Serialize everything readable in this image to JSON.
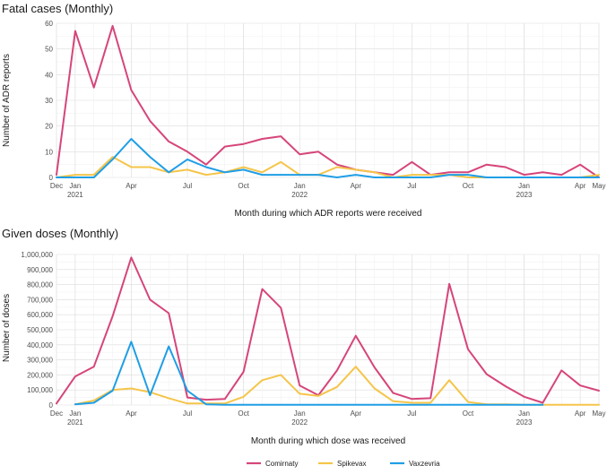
{
  "figure": {
    "colors": {
      "Comirnaty": "#d6457a",
      "Spikevax": "#f5c54a",
      "Vaxzevria": "#1f9ee6"
    }
  },
  "chart_data": [
    {
      "type": "line",
      "title": "Fatal cases (Monthly)",
      "xlabel": "Month during which ADR reports were received",
      "ylabel": "Number of ADR reports",
      "ylim": [
        0,
        60
      ],
      "yticks": [
        "0",
        "10",
        "20",
        "30",
        "40",
        "50",
        "60"
      ],
      "x": [
        "2020-12",
        "2021-01",
        "2021-02",
        "2021-03",
        "2021-04",
        "2021-05",
        "2021-06",
        "2021-07",
        "2021-08",
        "2021-09",
        "2021-10",
        "2021-11",
        "2021-12",
        "2022-01",
        "2022-02",
        "2022-03",
        "2022-04",
        "2022-05",
        "2022-06",
        "2022-07",
        "2022-08",
        "2022-09",
        "2022-10",
        "2022-11",
        "2022-12",
        "2023-01",
        "2023-02",
        "2023-03",
        "2023-04",
        "2023-05"
      ],
      "xticks": [
        {
          "label": "Dec",
          "year": "",
          "index": 0
        },
        {
          "label": "Jan",
          "year": "2021",
          "index": 1
        },
        {
          "label": "Apr",
          "year": "",
          "index": 4
        },
        {
          "label": "Jul",
          "year": "",
          "index": 7
        },
        {
          "label": "Oct",
          "year": "",
          "index": 10
        },
        {
          "label": "Jan",
          "year": "2022",
          "index": 13
        },
        {
          "label": "Apr",
          "year": "",
          "index": 16
        },
        {
          "label": "Jul",
          "year": "",
          "index": 19
        },
        {
          "label": "Oct",
          "year": "",
          "index": 22
        },
        {
          "label": "Jan",
          "year": "2023",
          "index": 25
        },
        {
          "label": "Apr",
          "year": "",
          "index": 28
        },
        {
          "label": "May",
          "year": "",
          "index": 29
        }
      ],
      "grid": true,
      "series": [
        {
          "name": "Comirnaty",
          "values": [
            1,
            57,
            35,
            59,
            34,
            22,
            14,
            10,
            5,
            12,
            13,
            15,
            16,
            9,
            10,
            5,
            3,
            2,
            1,
            6,
            1,
            2,
            2,
            5,
            4,
            1,
            2,
            1,
            5,
            0
          ]
        },
        {
          "name": "Spikevax",
          "values": [
            0,
            1,
            1,
            8,
            4,
            4,
            2,
            3,
            1,
            2,
            4,
            2,
            6,
            1,
            1,
            4,
            3,
            2,
            0,
            1,
            1,
            1,
            0,
            0,
            0,
            0,
            0,
            0,
            0,
            1
          ]
        },
        {
          "name": "Vaxzevria",
          "values": [
            0,
            0,
            0,
            7,
            15,
            8,
            2,
            7,
            4,
            2,
            3,
            1,
            1,
            1,
            1,
            0,
            1,
            0,
            0,
            0,
            0,
            1,
            1,
            0,
            0,
            0,
            0,
            0,
            0,
            0
          ]
        }
      ]
    },
    {
      "type": "line",
      "title": "Given doses (Monthly)",
      "xlabel": "Month during which dose was received",
      "ylabel": "Number of doses",
      "ylim": [
        0,
        1000000
      ],
      "yticks": [
        "0",
        "100,000",
        "200,000",
        "300,000",
        "400,000",
        "500,000",
        "600,000",
        "700,000",
        "800,000",
        "900,000",
        "1,000,000"
      ],
      "x": [
        "2020-12",
        "2021-01",
        "2021-02",
        "2021-03",
        "2021-04",
        "2021-05",
        "2021-06",
        "2021-07",
        "2021-08",
        "2021-09",
        "2021-10",
        "2021-11",
        "2021-12",
        "2022-01",
        "2022-02",
        "2022-03",
        "2022-04",
        "2022-05",
        "2022-06",
        "2022-07",
        "2022-08",
        "2022-09",
        "2022-10",
        "2022-11",
        "2022-12",
        "2023-01",
        "2023-02",
        "2023-03",
        "2023-04",
        "2023-05"
      ],
      "xticks": [
        {
          "label": "Dec",
          "year": "",
          "index": 0
        },
        {
          "label": "Jan",
          "year": "2021",
          "index": 1
        },
        {
          "label": "Apr",
          "year": "",
          "index": 4
        },
        {
          "label": "Jul",
          "year": "",
          "index": 7
        },
        {
          "label": "Oct",
          "year": "",
          "index": 10
        },
        {
          "label": "Jan",
          "year": "2022",
          "index": 13
        },
        {
          "label": "Apr",
          "year": "",
          "index": 16
        },
        {
          "label": "Jul",
          "year": "",
          "index": 19
        },
        {
          "label": "Oct",
          "year": "",
          "index": 22
        },
        {
          "label": "Jan",
          "year": "2023",
          "index": 25
        },
        {
          "label": "Apr",
          "year": "",
          "index": 28
        },
        {
          "label": "May",
          "year": "",
          "index": 29
        }
      ],
      "grid": true,
      "series": [
        {
          "name": "Comirnaty",
          "values": [
            10000,
            190000,
            255000,
            590000,
            980000,
            700000,
            610000,
            50000,
            35000,
            40000,
            220000,
            770000,
            645000,
            130000,
            65000,
            230000,
            460000,
            250000,
            80000,
            40000,
            45000,
            805000,
            370000,
            205000,
            125000,
            55000,
            15000,
            230000,
            130000,
            95000
          ]
        },
        {
          "name": "Spikevax",
          "values": [
            null,
            5000,
            30000,
            100000,
            110000,
            85000,
            45000,
            10000,
            10000,
            10000,
            55000,
            165000,
            200000,
            75000,
            60000,
            120000,
            255000,
            110000,
            25000,
            15000,
            15000,
            165000,
            20000,
            5000,
            5000,
            2000,
            2000,
            2000,
            2000,
            2000
          ]
        },
        {
          "name": "Vaxzevria",
          "values": [
            null,
            5000,
            15000,
            95000,
            420000,
            65000,
            390000,
            95000,
            5000,
            2000,
            1000,
            1000,
            1000,
            1000,
            1000,
            1000,
            1000,
            1000,
            1000,
            1000,
            1000,
            1000,
            1000,
            1000,
            1000,
            1000,
            1000,
            null,
            null,
            null
          ]
        }
      ]
    }
  ],
  "legend": {
    "position": "bottom",
    "items": [
      "Comirnaty",
      "Spikevax",
      "Vaxzevria"
    ]
  }
}
